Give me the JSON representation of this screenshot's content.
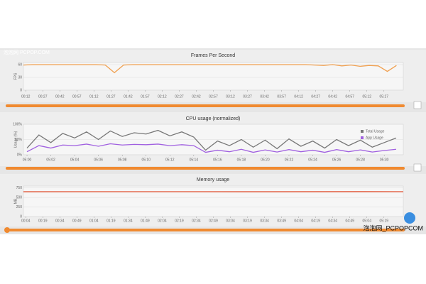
{
  "watermarks": [
    "泡泡网 PCPOP.COM",
    "泡泡网_PCPOPCOM"
  ],
  "chart_data": [
    {
      "type": "line",
      "title": "Frames Per Second",
      "ylabel": "FPS",
      "x": [
        10,
        18,
        26,
        34,
        42,
        50,
        58,
        66,
        74,
        82,
        90,
        98,
        106,
        114,
        122,
        130,
        138,
        146,
        154,
        162,
        170,
        178,
        186,
        194,
        202,
        210,
        218,
        226,
        234,
        242,
        250,
        258,
        266,
        274,
        282,
        290,
        298,
        306,
        314,
        322,
        330,
        338
      ],
      "series": [
        {
          "name": "FPS",
          "color": "#f0a050",
          "values": [
            59,
            60,
            60,
            60,
            60,
            60,
            60,
            60,
            60,
            59,
            41,
            59,
            60,
            60,
            60,
            60,
            60,
            60,
            60,
            60,
            60,
            60,
            60,
            60,
            60,
            60,
            60,
            60,
            60,
            60,
            60,
            60,
            59,
            58,
            60,
            57,
            59,
            56,
            58,
            57,
            44,
            58
          ]
        }
      ],
      "xlim": [
        10,
        344
      ],
      "xticks": [
        {
          "value": 12,
          "label": "00:12"
        },
        {
          "value": 27,
          "label": "00:27"
        },
        {
          "value": 42,
          "label": "00:42"
        },
        {
          "value": 57,
          "label": "00:57"
        },
        {
          "value": 72,
          "label": "01:12"
        },
        {
          "value": 87,
          "label": "01:27"
        },
        {
          "value": 102,
          "label": "01:42"
        },
        {
          "value": 117,
          "label": "01:57"
        },
        {
          "value": 132,
          "label": "02:12"
        },
        {
          "value": 147,
          "label": "02:27"
        },
        {
          "value": 162,
          "label": "02:42"
        },
        {
          "value": 177,
          "label": "02:57"
        },
        {
          "value": 192,
          "label": "03:12"
        },
        {
          "value": 207,
          "label": "03:27"
        },
        {
          "value": 222,
          "label": "03:42"
        },
        {
          "value": 237,
          "label": "03:57"
        },
        {
          "value": 252,
          "label": "04:12"
        },
        {
          "value": 267,
          "label": "04:27"
        },
        {
          "value": 282,
          "label": "04:42"
        },
        {
          "value": 297,
          "label": "04:57"
        },
        {
          "value": 312,
          "label": "05:12"
        },
        {
          "value": 327,
          "label": "05:27"
        }
      ],
      "ylim": [
        0,
        65
      ],
      "yticks": [
        0,
        30,
        60
      ],
      "grid": true
    },
    {
      "type": "line",
      "title": "CPU usage (normalized)",
      "ylabel": "Usage (%)",
      "x": [
        300,
        301,
        302,
        303,
        304,
        305,
        306,
        307,
        308,
        309,
        310,
        311,
        312,
        313,
        314,
        315,
        316,
        317,
        318,
        319,
        320,
        321,
        322,
        323,
        324,
        325,
        326,
        327,
        328,
        329,
        330,
        331
      ],
      "series": [
        {
          "name": "Total Usage",
          "color": "#777777",
          "values": [
            22,
            65,
            40,
            70,
            55,
            75,
            50,
            78,
            60,
            72,
            68,
            80,
            62,
            75,
            58,
            15,
            45,
            30,
            50,
            25,
            48,
            20,
            52,
            28,
            45,
            22,
            50,
            30,
            48,
            25,
            40,
            55
          ]
        },
        {
          "name": "App Usage",
          "color": "#a060e0",
          "values": [
            10,
            30,
            22,
            32,
            30,
            35,
            28,
            36,
            32,
            34,
            33,
            35,
            30,
            33,
            30,
            8,
            15,
            10,
            18,
            8,
            16,
            9,
            17,
            10,
            15,
            8,
            17,
            10,
            16,
            9,
            14,
            18
          ]
        }
      ],
      "xlim": [
        299.7,
        331.6
      ],
      "xticks": [
        {
          "value": 300,
          "label": "05:00"
        },
        {
          "value": 302,
          "label": "05:02"
        },
        {
          "value": 304,
          "label": "05:04"
        },
        {
          "value": 306,
          "label": "05:06"
        },
        {
          "value": 308,
          "label": "05:08"
        },
        {
          "value": 310,
          "label": "05:10"
        },
        {
          "value": 312,
          "label": "05:12"
        },
        {
          "value": 314,
          "label": "05:14"
        },
        {
          "value": 316,
          "label": "05:16"
        },
        {
          "value": 318,
          "label": "05:18"
        },
        {
          "value": 320,
          "label": "05:20"
        },
        {
          "value": 322,
          "label": "05:22"
        },
        {
          "value": 324,
          "label": "05:24"
        },
        {
          "value": 326,
          "label": "05:26"
        },
        {
          "value": 328,
          "label": "05:28"
        },
        {
          "value": 330,
          "label": "05:30"
        }
      ],
      "ylim": [
        0,
        100
      ],
      "yticks": [
        {
          "value": 0,
          "label": "0%"
        },
        {
          "value": 50,
          "label": "50%"
        },
        {
          "value": 100,
          "label": "100%"
        }
      ],
      "grid": true,
      "legend": "upper right"
    },
    {
      "type": "line",
      "title": "Memory usage",
      "ylabel": "MB",
      "x": [
        2,
        100,
        200,
        300,
        336
      ],
      "series": [
        {
          "name": "Memory",
          "color": "#e05030",
          "values": [
            650,
            651,
            650,
            652,
            651
          ]
        }
      ],
      "xlim": [
        2,
        336
      ],
      "xticks": [
        {
          "value": 4,
          "label": "00:04"
        },
        {
          "value": 19,
          "label": "00:19"
        },
        {
          "value": 34,
          "label": "00:34"
        },
        {
          "value": 49,
          "label": "00:49"
        },
        {
          "value": 64,
          "label": "01:04"
        },
        {
          "value": 79,
          "label": "01:19"
        },
        {
          "value": 94,
          "label": "01:34"
        },
        {
          "value": 109,
          "label": "01:49"
        },
        {
          "value": 124,
          "label": "02:04"
        },
        {
          "value": 139,
          "label": "02:19"
        },
        {
          "value": 154,
          "label": "02:34"
        },
        {
          "value": 169,
          "label": "02:49"
        },
        {
          "value": 184,
          "label": "03:04"
        },
        {
          "value": 199,
          "label": "03:19"
        },
        {
          "value": 214,
          "label": "03:34"
        },
        {
          "value": 229,
          "label": "03:49"
        },
        {
          "value": 244,
          "label": "04:04"
        },
        {
          "value": 259,
          "label": "04:19"
        },
        {
          "value": 274,
          "label": "04:34"
        },
        {
          "value": 289,
          "label": "04:49"
        },
        {
          "value": 304,
          "label": "05:04"
        },
        {
          "value": 319,
          "label": "05:19"
        }
      ],
      "ylim": [
        0,
        800
      ],
      "yticks": [
        0,
        250,
        500,
        750
      ],
      "grid": true
    }
  ]
}
